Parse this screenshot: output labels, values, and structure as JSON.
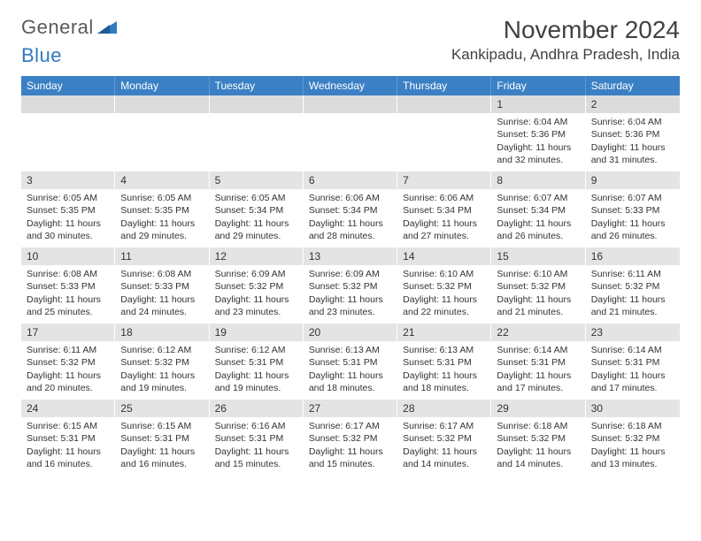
{
  "logo": {
    "text1": "General",
    "text2": "Blue"
  },
  "title": "November 2024",
  "location": "Kankipadu, Andhra Pradesh, India",
  "colors": {
    "header_bg": "#3b80c4",
    "header_border": "#5d9ad1",
    "daynum_bg": "#e4e4e4",
    "text": "#333333",
    "page_bg": "#ffffff"
  },
  "day_labels": [
    "Sunday",
    "Monday",
    "Tuesday",
    "Wednesday",
    "Thursday",
    "Friday",
    "Saturday"
  ],
  "weeks": [
    [
      null,
      null,
      null,
      null,
      null,
      {
        "n": "1",
        "sr": "Sunrise: 6:04 AM",
        "ss": "Sunset: 5:36 PM",
        "d1": "Daylight: 11 hours",
        "d2": "and 32 minutes."
      },
      {
        "n": "2",
        "sr": "Sunrise: 6:04 AM",
        "ss": "Sunset: 5:36 PM",
        "d1": "Daylight: 11 hours",
        "d2": "and 31 minutes."
      }
    ],
    [
      {
        "n": "3",
        "sr": "Sunrise: 6:05 AM",
        "ss": "Sunset: 5:35 PM",
        "d1": "Daylight: 11 hours",
        "d2": "and 30 minutes."
      },
      {
        "n": "4",
        "sr": "Sunrise: 6:05 AM",
        "ss": "Sunset: 5:35 PM",
        "d1": "Daylight: 11 hours",
        "d2": "and 29 minutes."
      },
      {
        "n": "5",
        "sr": "Sunrise: 6:05 AM",
        "ss": "Sunset: 5:34 PM",
        "d1": "Daylight: 11 hours",
        "d2": "and 29 minutes."
      },
      {
        "n": "6",
        "sr": "Sunrise: 6:06 AM",
        "ss": "Sunset: 5:34 PM",
        "d1": "Daylight: 11 hours",
        "d2": "and 28 minutes."
      },
      {
        "n": "7",
        "sr": "Sunrise: 6:06 AM",
        "ss": "Sunset: 5:34 PM",
        "d1": "Daylight: 11 hours",
        "d2": "and 27 minutes."
      },
      {
        "n": "8",
        "sr": "Sunrise: 6:07 AM",
        "ss": "Sunset: 5:34 PM",
        "d1": "Daylight: 11 hours",
        "d2": "and 26 minutes."
      },
      {
        "n": "9",
        "sr": "Sunrise: 6:07 AM",
        "ss": "Sunset: 5:33 PM",
        "d1": "Daylight: 11 hours",
        "d2": "and 26 minutes."
      }
    ],
    [
      {
        "n": "10",
        "sr": "Sunrise: 6:08 AM",
        "ss": "Sunset: 5:33 PM",
        "d1": "Daylight: 11 hours",
        "d2": "and 25 minutes."
      },
      {
        "n": "11",
        "sr": "Sunrise: 6:08 AM",
        "ss": "Sunset: 5:33 PM",
        "d1": "Daylight: 11 hours",
        "d2": "and 24 minutes."
      },
      {
        "n": "12",
        "sr": "Sunrise: 6:09 AM",
        "ss": "Sunset: 5:32 PM",
        "d1": "Daylight: 11 hours",
        "d2": "and 23 minutes."
      },
      {
        "n": "13",
        "sr": "Sunrise: 6:09 AM",
        "ss": "Sunset: 5:32 PM",
        "d1": "Daylight: 11 hours",
        "d2": "and 23 minutes."
      },
      {
        "n": "14",
        "sr": "Sunrise: 6:10 AM",
        "ss": "Sunset: 5:32 PM",
        "d1": "Daylight: 11 hours",
        "d2": "and 22 minutes."
      },
      {
        "n": "15",
        "sr": "Sunrise: 6:10 AM",
        "ss": "Sunset: 5:32 PM",
        "d1": "Daylight: 11 hours",
        "d2": "and 21 minutes."
      },
      {
        "n": "16",
        "sr": "Sunrise: 6:11 AM",
        "ss": "Sunset: 5:32 PM",
        "d1": "Daylight: 11 hours",
        "d2": "and 21 minutes."
      }
    ],
    [
      {
        "n": "17",
        "sr": "Sunrise: 6:11 AM",
        "ss": "Sunset: 5:32 PM",
        "d1": "Daylight: 11 hours",
        "d2": "and 20 minutes."
      },
      {
        "n": "18",
        "sr": "Sunrise: 6:12 AM",
        "ss": "Sunset: 5:32 PM",
        "d1": "Daylight: 11 hours",
        "d2": "and 19 minutes."
      },
      {
        "n": "19",
        "sr": "Sunrise: 6:12 AM",
        "ss": "Sunset: 5:31 PM",
        "d1": "Daylight: 11 hours",
        "d2": "and 19 minutes."
      },
      {
        "n": "20",
        "sr": "Sunrise: 6:13 AM",
        "ss": "Sunset: 5:31 PM",
        "d1": "Daylight: 11 hours",
        "d2": "and 18 minutes."
      },
      {
        "n": "21",
        "sr": "Sunrise: 6:13 AM",
        "ss": "Sunset: 5:31 PM",
        "d1": "Daylight: 11 hours",
        "d2": "and 18 minutes."
      },
      {
        "n": "22",
        "sr": "Sunrise: 6:14 AM",
        "ss": "Sunset: 5:31 PM",
        "d1": "Daylight: 11 hours",
        "d2": "and 17 minutes."
      },
      {
        "n": "23",
        "sr": "Sunrise: 6:14 AM",
        "ss": "Sunset: 5:31 PM",
        "d1": "Daylight: 11 hours",
        "d2": "and 17 minutes."
      }
    ],
    [
      {
        "n": "24",
        "sr": "Sunrise: 6:15 AM",
        "ss": "Sunset: 5:31 PM",
        "d1": "Daylight: 11 hours",
        "d2": "and 16 minutes."
      },
      {
        "n": "25",
        "sr": "Sunrise: 6:15 AM",
        "ss": "Sunset: 5:31 PM",
        "d1": "Daylight: 11 hours",
        "d2": "and 16 minutes."
      },
      {
        "n": "26",
        "sr": "Sunrise: 6:16 AM",
        "ss": "Sunset: 5:31 PM",
        "d1": "Daylight: 11 hours",
        "d2": "and 15 minutes."
      },
      {
        "n": "27",
        "sr": "Sunrise: 6:17 AM",
        "ss": "Sunset: 5:32 PM",
        "d1": "Daylight: 11 hours",
        "d2": "and 15 minutes."
      },
      {
        "n": "28",
        "sr": "Sunrise: 6:17 AM",
        "ss": "Sunset: 5:32 PM",
        "d1": "Daylight: 11 hours",
        "d2": "and 14 minutes."
      },
      {
        "n": "29",
        "sr": "Sunrise: 6:18 AM",
        "ss": "Sunset: 5:32 PM",
        "d1": "Daylight: 11 hours",
        "d2": "and 14 minutes."
      },
      {
        "n": "30",
        "sr": "Sunrise: 6:18 AM",
        "ss": "Sunset: 5:32 PM",
        "d1": "Daylight: 11 hours",
        "d2": "and 13 minutes."
      }
    ]
  ]
}
